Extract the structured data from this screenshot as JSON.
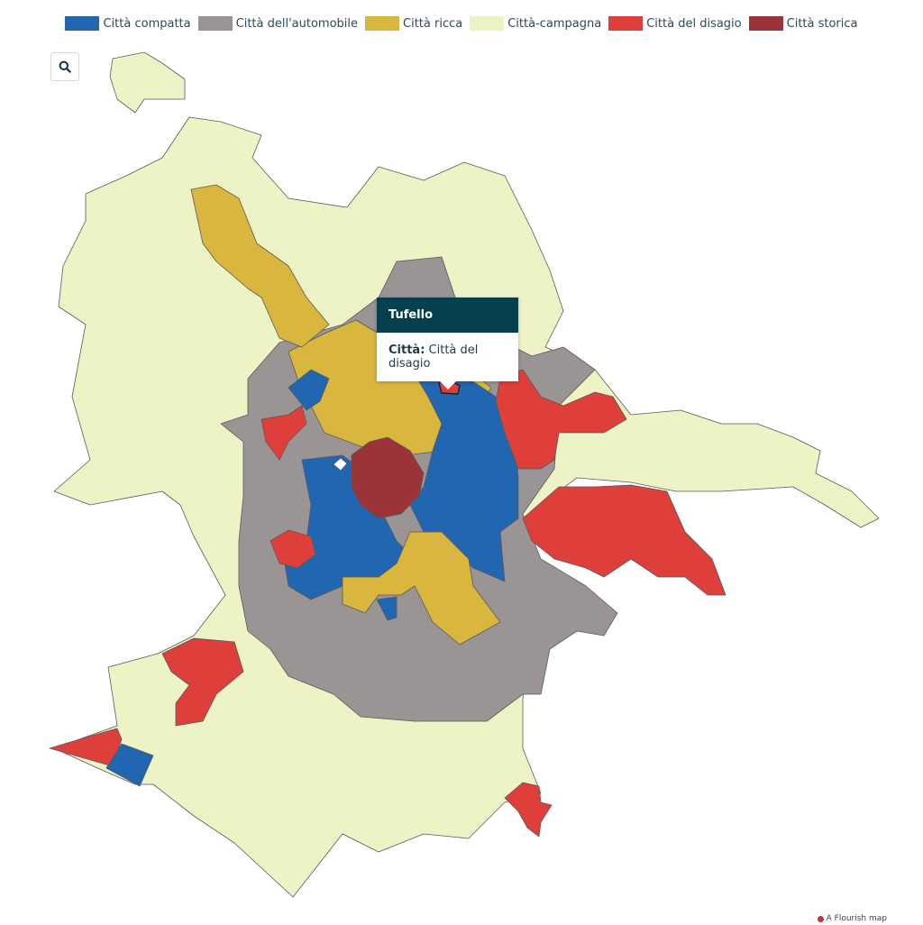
{
  "legend": [
    {
      "label": "Città compatta",
      "color": "#2166b0"
    },
    {
      "label": "Città dell'automobile",
      "color": "#9a9495"
    },
    {
      "label": "Città ricca",
      "color": "#d9b63e"
    },
    {
      "label": "Città-campagna",
      "color": "#eef3c6"
    },
    {
      "label": "Città del disagio",
      "color": "#df3f3a"
    },
    {
      "label": "Città storica",
      "color": "#9b3338"
    }
  ],
  "search": {
    "icon": "search-icon"
  },
  "tooltip": {
    "title": "Tufello",
    "key": "Città:",
    "value": "Città del disagio"
  },
  "credit": {
    "label": "A Flourish map"
  }
}
